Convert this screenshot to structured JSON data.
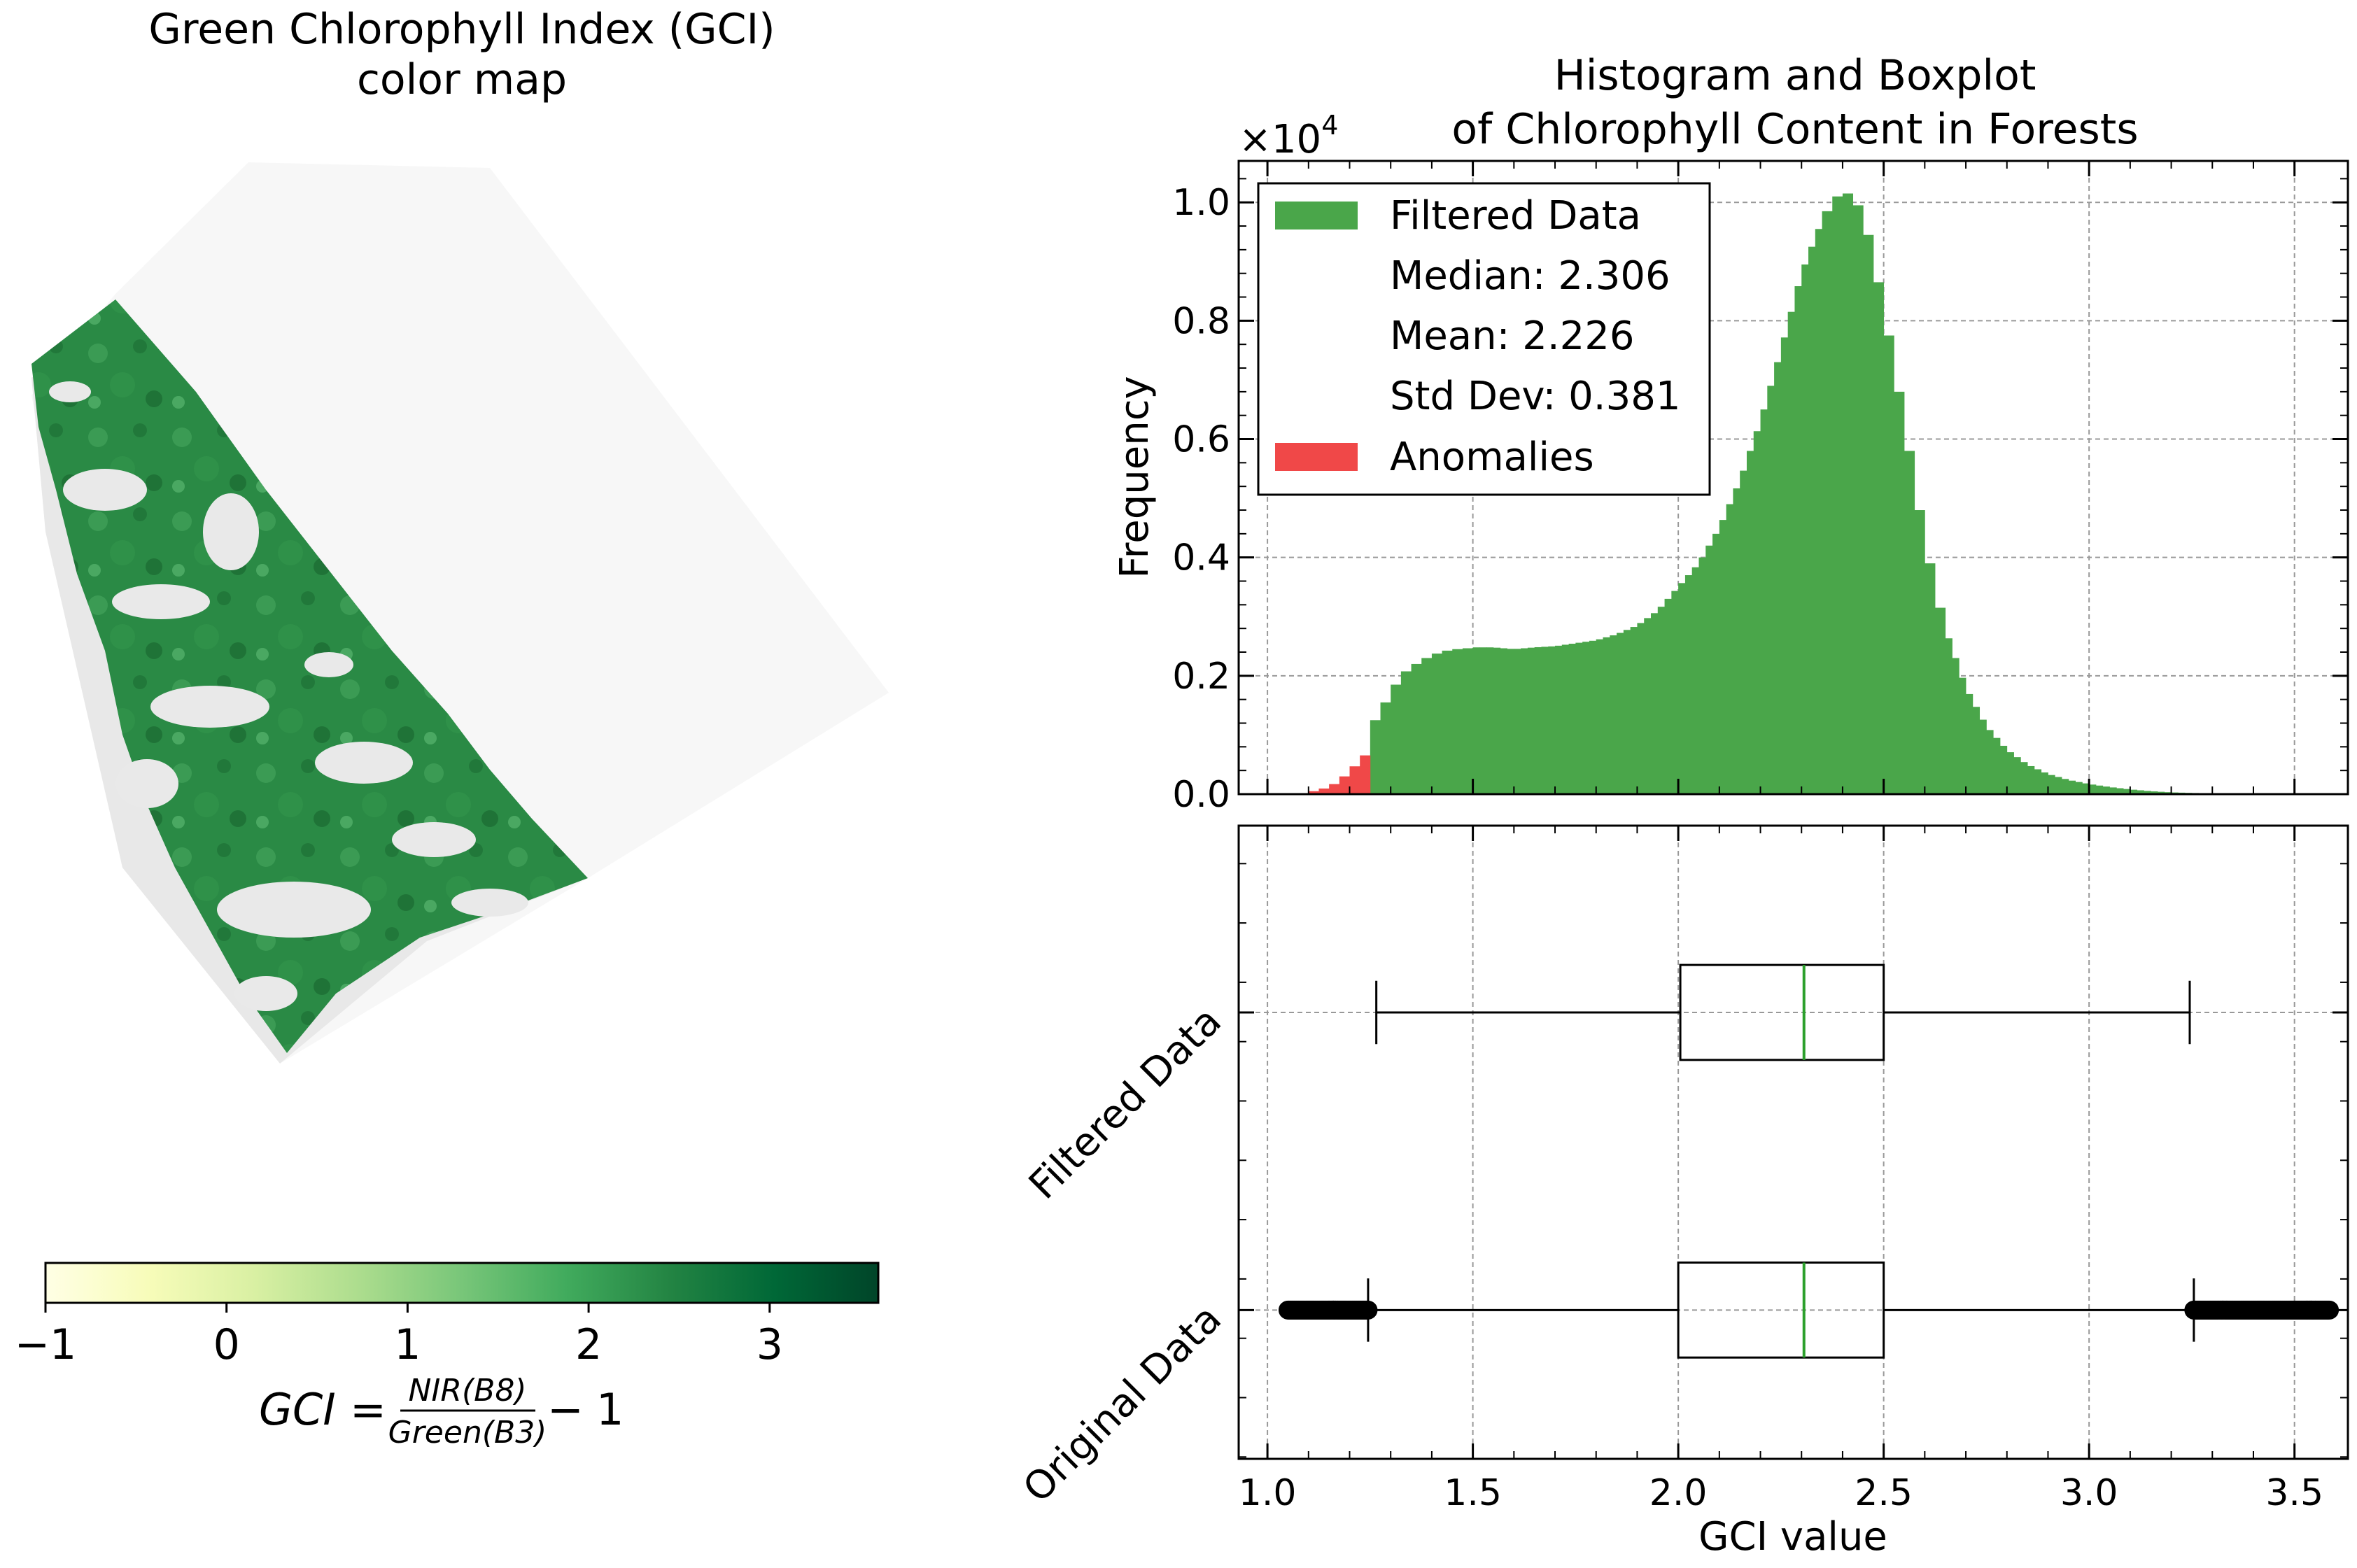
{
  "left_panel": {
    "title_line1": "Green Chlorophyll Index (GCI)",
    "title_line2": "color map",
    "colorbar": {
      "colormap": "Greens",
      "colors": [
        "#ffffe5",
        "#f7fcb9",
        "#d9f0a3",
        "#addd8e",
        "#78c679",
        "#41ab5d",
        "#238443",
        "#006837",
        "#004529"
      ],
      "range": [
        -1,
        3.6
      ],
      "ticks": [
        -1,
        0,
        1,
        2,
        3
      ],
      "tick_labels": [
        "−1",
        "0",
        "1",
        "2",
        "3"
      ]
    },
    "formula": {
      "lhs": "GCI",
      "equals": "=",
      "numerator": "NIR(B8)",
      "denominator": "Green(B3)",
      "minus": "−",
      "one": "1"
    }
  },
  "chart_data": [
    {
      "type": "bar",
      "subtype": "histogram",
      "title": "Histogram and Boxplot\nof Chlorophyll Content in Forests",
      "title_line1": "Histogram and Boxplot",
      "title_line2": "of Chlorophyll Content in Forests",
      "xlabel": "",
      "ylabel": "Frequency",
      "y_multiplier_label": "×10",
      "y_multiplier_exponent": "4",
      "xlim": [
        0.93,
        3.63
      ],
      "ylim": [
        0,
        1.07
      ],
      "y_ticks": [
        0.0,
        0.2,
        0.4,
        0.6,
        0.8,
        1.0
      ],
      "y_tick_labels": [
        "0.0",
        "0.2",
        "0.4",
        "0.6",
        "0.8",
        "1.0"
      ],
      "grid": true,
      "legend_position": "upper-left",
      "legend": {
        "filtered": "Filtered Data",
        "median": "Median: 2.306",
        "mean": "Mean: 2.226",
        "std": "Std Dev: 0.381",
        "anomalies": "Anomalies"
      },
      "colors": {
        "filtered": "#4aa64a",
        "anomalies": "#f04848"
      },
      "series": [
        {
          "name": "Anomalies",
          "bins_x": [
            1.1,
            1.125,
            1.15,
            1.175,
            1.2,
            1.225,
            1.25
          ],
          "values": [
            0.003,
            0.007,
            0.012,
            0.022,
            0.038,
            0.056,
            0.075
          ]
        },
        {
          "name": "Filtered Data",
          "bins_x": [
            1.25,
            1.275,
            1.3,
            1.325,
            1.35,
            1.375,
            1.4,
            1.425,
            1.45,
            1.475,
            1.5,
            1.55,
            1.6,
            1.65,
            1.7,
            1.75,
            1.8,
            1.85,
            1.9,
            1.95,
            2.0,
            2.05,
            2.1,
            2.15,
            2.2,
            2.25,
            2.3,
            2.35,
            2.375,
            2.4,
            2.425,
            2.45,
            2.475,
            2.5,
            2.525,
            2.55,
            2.575,
            2.6,
            2.625,
            2.65,
            2.7,
            2.75,
            2.8,
            2.85,
            2.9,
            2.95,
            3.0,
            3.05,
            3.1,
            3.15,
            3.2,
            3.25,
            3.3,
            3.35,
            3.4,
            3.45,
            3.5
          ],
          "values": [
            0.11,
            0.14,
            0.17,
            0.2,
            0.215,
            0.225,
            0.235,
            0.24,
            0.245,
            0.245,
            0.248,
            0.248,
            0.245,
            0.248,
            0.25,
            0.255,
            0.26,
            0.27,
            0.285,
            0.31,
            0.35,
            0.39,
            0.45,
            0.53,
            0.63,
            0.75,
            0.88,
            0.97,
            1.0,
            1.02,
            1.01,
            0.98,
            0.91,
            0.82,
            0.73,
            0.63,
            0.53,
            0.43,
            0.35,
            0.28,
            0.18,
            0.115,
            0.075,
            0.05,
            0.034,
            0.024,
            0.017,
            0.012,
            0.008,
            0.005,
            0.003,
            0.002,
            0.0015,
            0.001,
            0.0006,
            0.0003,
            0.0001
          ]
        }
      ]
    },
    {
      "type": "boxplot",
      "xlabel": "GCI value",
      "xlim": [
        0.93,
        3.63
      ],
      "x_ticks": [
        1.0,
        1.5,
        2.0,
        2.5,
        3.0,
        3.5
      ],
      "x_tick_labels": [
        "1.0",
        "1.5",
        "2.0",
        "2.5",
        "3.0",
        "3.5"
      ],
      "grid": true,
      "median_color": "#2ca02c",
      "series": [
        {
          "name": "Filtered Data",
          "whisker_low": 1.265,
          "q1": 2.005,
          "median": 2.306,
          "q3": 2.5,
          "whisker_high": 3.245,
          "outliers": []
        },
        {
          "name": "Original Data",
          "whisker_low": 1.245,
          "q1": 2.0,
          "median": 2.306,
          "q3": 2.5,
          "whisker_high": 3.255,
          "outliers_low_range": [
            1.05,
            1.245
          ],
          "outliers_high_range": [
            3.255,
            3.585
          ]
        }
      ]
    }
  ]
}
